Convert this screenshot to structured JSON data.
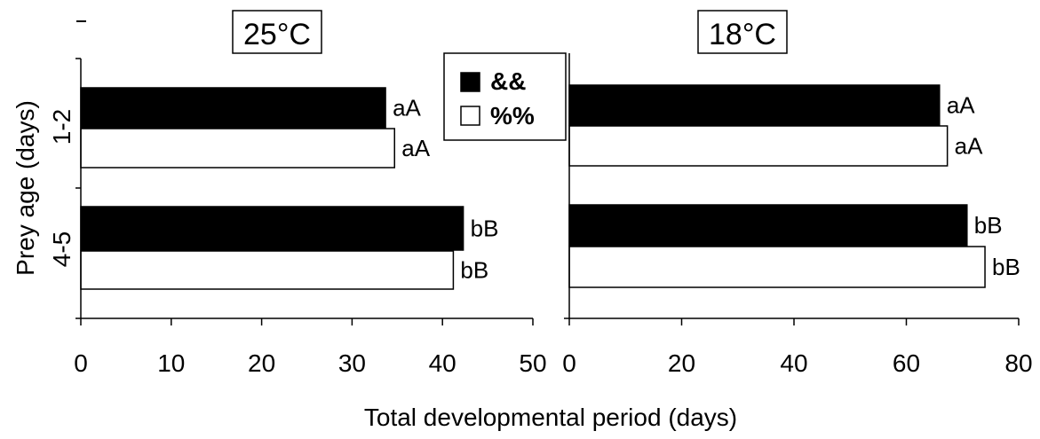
{
  "figure": {
    "ylabel": "Prey age (days)",
    "xlabel": "Total developmental period (days)",
    "legend": {
      "placement": "top-center",
      "entries": [
        {
          "label": "&&",
          "fill": "#000000"
        },
        {
          "label": "%%",
          "fill": "#ffffff"
        }
      ]
    }
  },
  "chart_data": [
    {
      "type": "bar",
      "orientation": "horizontal",
      "title": "25°C",
      "categories": [
        "1-2",
        "4-5"
      ],
      "xlim": [
        0,
        50
      ],
      "xticks": [
        "0",
        "10",
        "20",
        "30",
        "40",
        "50"
      ],
      "series": [
        {
          "name": "&&",
          "fill": "#000000",
          "values": [
            33.7,
            42.3
          ],
          "labels": [
            "aA",
            "bB"
          ]
        },
        {
          "name": "%%",
          "fill": "#ffffff",
          "values": [
            34.7,
            41.2
          ],
          "labels": [
            "aA",
            "bB"
          ]
        }
      ]
    },
    {
      "type": "bar",
      "orientation": "horizontal",
      "title": "18°C",
      "categories": [
        "1-2",
        "4-5"
      ],
      "xlim": [
        0,
        80
      ],
      "xticks": [
        "0",
        "20",
        "40",
        "60",
        "80"
      ],
      "series": [
        {
          "name": "&&",
          "fill": "#000000",
          "values": [
            65.9,
            70.8
          ],
          "labels": [
            "aA",
            "bB"
          ]
        },
        {
          "name": "%%",
          "fill": "#ffffff",
          "values": [
            67.3,
            74.0
          ],
          "labels": [
            "aA",
            "bB"
          ]
        }
      ]
    }
  ]
}
